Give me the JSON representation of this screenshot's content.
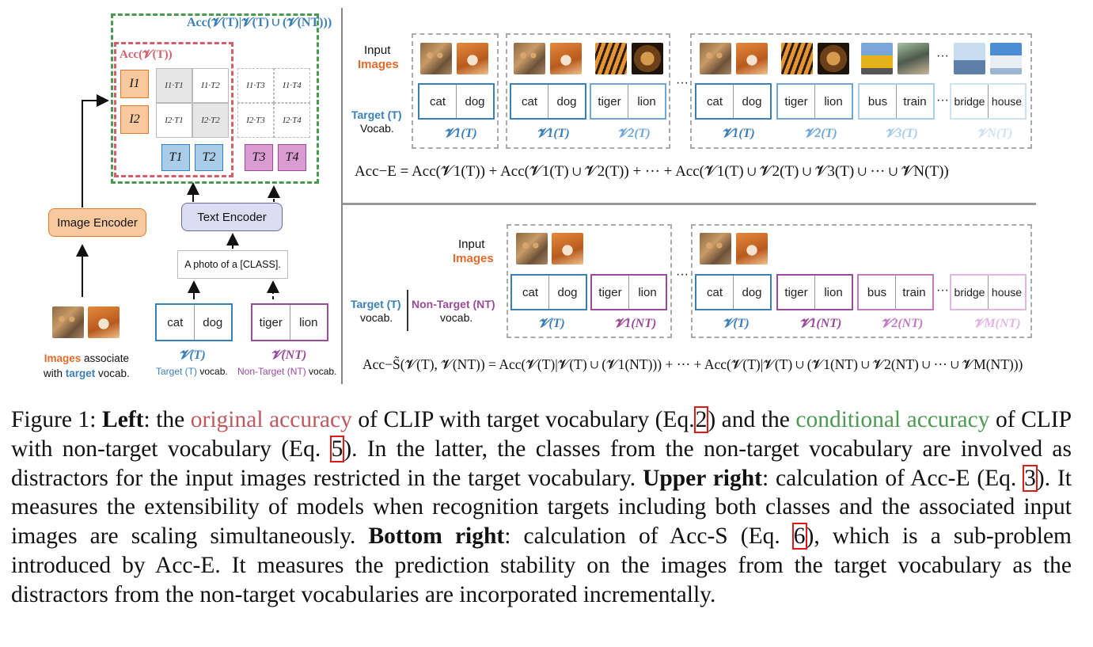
{
  "figure": {
    "left": {
      "acc_cond": "Acc(𝓥(T)|𝓥(T) ∪ (𝓥(NT)))",
      "acc_orig": "Acc(𝓥(T))",
      "i1": "I1",
      "i2": "I2",
      "t1": "T1",
      "t2": "T2",
      "t3": "T3",
      "t4": "T4",
      "cells": [
        "I1·T1",
        "I1·T2",
        "I1·T3",
        "I1·T4",
        "I2·T1",
        "I2·T2",
        "I2·T3",
        "I2·T4"
      ],
      "image_encoder": "Image Encoder",
      "text_encoder": "Text Encoder",
      "prompt": "A photo of a [CLASS].",
      "target_vocab_words": [
        "cat",
        "dog"
      ],
      "nontarget_vocab_words": [
        "tiger",
        "lion"
      ],
      "v_t": "𝓥(T)",
      "v_nt": "𝓥(NT)",
      "images_label_1": "Images",
      "images_label_2": " associate",
      "images_label_3": "with ",
      "images_label_4": "target",
      "images_label_5": " vocab.",
      "target_caption_1": "Target (T)",
      "target_caption_2": " vocab.",
      "nontarget_caption_1": "Non-Target (NT)",
      "nontarget_caption_2": " vocab."
    },
    "upper": {
      "input": "Input",
      "images": "Images",
      "target_t": "Target (T)",
      "vocab": "Vocab.",
      "ellipsis": "···",
      "v1": "𝓥1(T)",
      "v2": "𝓥2(T)",
      "v3": "𝓥3(T)",
      "vn": "𝓥N(T)",
      "words": {
        "cat": "cat",
        "dog": "dog",
        "tiger": "tiger",
        "lion": "lion",
        "bus": "bus",
        "train": "train",
        "bridge": "bridge",
        "house": "house"
      },
      "formula": "Acc−E = Acc(𝓥1(T)) + Acc(𝓥1(T) ∪ 𝓥2(T)) + ··· + Acc(𝓥1(T) ∪ 𝓥2(T) ∪ 𝓥3(T) ∪ ··· ∪ 𝓥N(T))"
    },
    "lower": {
      "input": "Input",
      "images": "Images",
      "target_t": "Target (T)",
      "vocab": "vocab.",
      "nontarget": "Non-Target (NT)",
      "vocab2": "vocab.",
      "vt": "𝓥(T)",
      "v1nt": "𝓥1(NT)",
      "v2nt": "𝓥2(NT)",
      "vmnt": "𝓥M(NT)",
      "formula": "Acc−S̃(𝓥(T), 𝓥(NT)) = Acc(𝓥(T)|𝓥(T) ∪ (𝓥1(NT))) + ··· + Acc(𝓥(T)|𝓥(T) ∪ (𝓥1(NT) ∪ 𝓥2(NT) ∪ ··· ∪ 𝓥M(NT)))"
    }
  },
  "caption": {
    "p1": "Figure 1: ",
    "p2": "Left",
    "p3": ": the ",
    "p4": "original accuracy",
    "p5": " of CLIP with target vocabulary (Eq.",
    "ref2": "2",
    "p6": ") and the ",
    "p7": "conditional accuracy",
    "p8": " of CLIP with non-target vocabulary (Eq. ",
    "ref5": "5",
    "p9": "). In the latter, the classes from the non-target vocabulary are involved as distractors for the input images restricted in the target vocabulary. ",
    "p10": "Upper right",
    "p11": ": calculation of Acc-E (Eq. ",
    "ref3": "3",
    "p12": "). It measures the extensibility of models when recognition targets including both classes and the associated input images are scaling simultaneously. ",
    "p13": "Bottom right",
    "p14": ": calculation of Acc-S (Eq. ",
    "ref6": "6",
    "p15": "), which is a sub-problem introduced by Acc-E. It measures the prediction stability on the images from the target vocabulary as the distractors from the non-target vocabularies are incorporated incrementally."
  },
  "colors": {
    "green": "#4a9a4f",
    "red": "#d0606a",
    "blue": "#3b7fb8",
    "purple": "#9a4a9a",
    "orange": "#f2a96a",
    "light_blue": "#a9cde8"
  }
}
